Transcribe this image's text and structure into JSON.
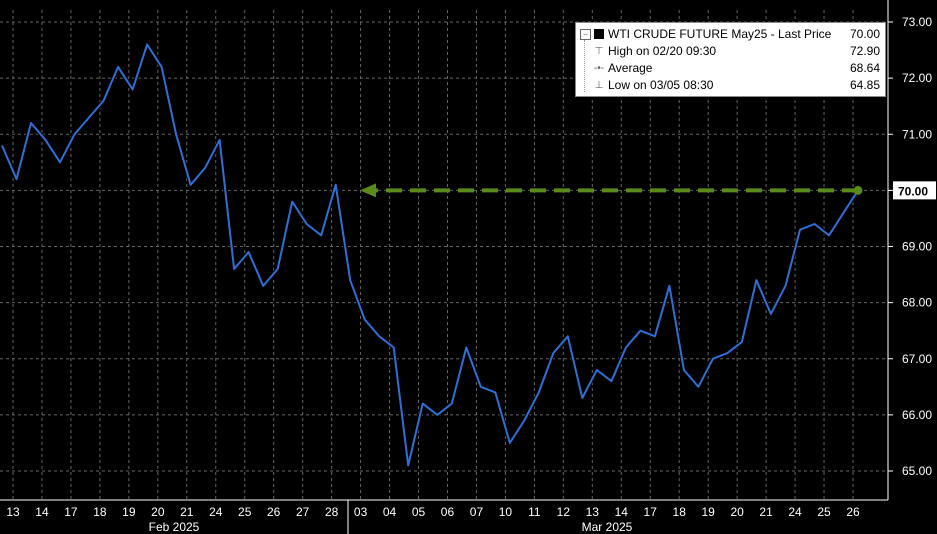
{
  "legend": {
    "title": "WTI CRUDE FUTURE May25 - Last Price",
    "title_value": "70.00",
    "high_label": "High on 02/20 09:30",
    "high_value": "72.90",
    "avg_label": "Average",
    "avg_value": "68.64",
    "low_label": "Low on 03/05 08:30",
    "low_value": "64.85"
  },
  "last_price_tag": "70.00",
  "colors": {
    "background": "#000000",
    "line": "#2f6fd6",
    "arrow": "#5a8a1a",
    "grid": "#666666"
  },
  "chart_data": {
    "type": "line",
    "title": "WTI CRUDE FUTURE May25 - Last Price",
    "ylim": [
      64.5,
      73.2
    ],
    "yticks": [
      "65.00",
      "66.00",
      "67.00",
      "68.00",
      "69.00",
      "70.00",
      "71.00",
      "72.00",
      "73.00"
    ],
    "xticks": [
      "13",
      "14",
      "17",
      "18",
      "19",
      "20",
      "21",
      "24",
      "25",
      "26",
      "27",
      "28",
      "03",
      "04",
      "05",
      "06",
      "07",
      "10",
      "11",
      "12",
      "13",
      "14",
      "17",
      "18",
      "19",
      "20",
      "21",
      "24",
      "25",
      "26"
    ],
    "month_labels": [
      "Feb 2025",
      "Mar 2025"
    ],
    "grid": true,
    "x": [
      "13",
      "13",
      "14",
      "14",
      "17",
      "17",
      "18",
      "18",
      "19",
      "19",
      "20",
      "20",
      "21",
      "21",
      "24",
      "24",
      "25",
      "25",
      "26",
      "26",
      "27",
      "27",
      "28",
      "28",
      "03",
      "03",
      "04",
      "04",
      "05",
      "05",
      "06",
      "06",
      "07",
      "07",
      "10",
      "10",
      "11",
      "11",
      "12",
      "12",
      "13",
      "13",
      "14",
      "14",
      "17",
      "17",
      "18",
      "18",
      "19",
      "19",
      "20",
      "20",
      "21",
      "21",
      "24",
      "24",
      "25",
      "25",
      "26",
      "26"
    ],
    "series": [
      {
        "values": [
          70.8,
          70.2,
          71.2,
          70.9,
          70.5,
          71.0,
          71.3,
          71.6,
          72.2,
          71.8,
          72.6,
          72.2,
          71.0,
          70.1,
          70.4,
          70.9,
          68.6,
          68.9,
          68.3,
          68.6,
          69.8,
          69.4,
          69.2,
          70.1,
          68.4,
          67.7,
          67.4,
          67.2,
          65.1,
          66.2,
          66.0,
          66.2,
          67.2,
          66.5,
          66.4,
          65.5,
          65.9,
          66.4,
          67.1,
          67.4,
          66.3,
          66.8,
          66.6,
          67.2,
          67.5,
          67.4,
          68.3,
          66.8,
          66.5,
          67.0,
          67.1,
          67.3,
          68.4,
          67.8,
          68.3,
          69.3,
          69.4,
          69.2,
          69.6,
          70.0
        ]
      }
    ],
    "arrow": {
      "from_value": 70.0,
      "to_value": 70.0
    }
  }
}
